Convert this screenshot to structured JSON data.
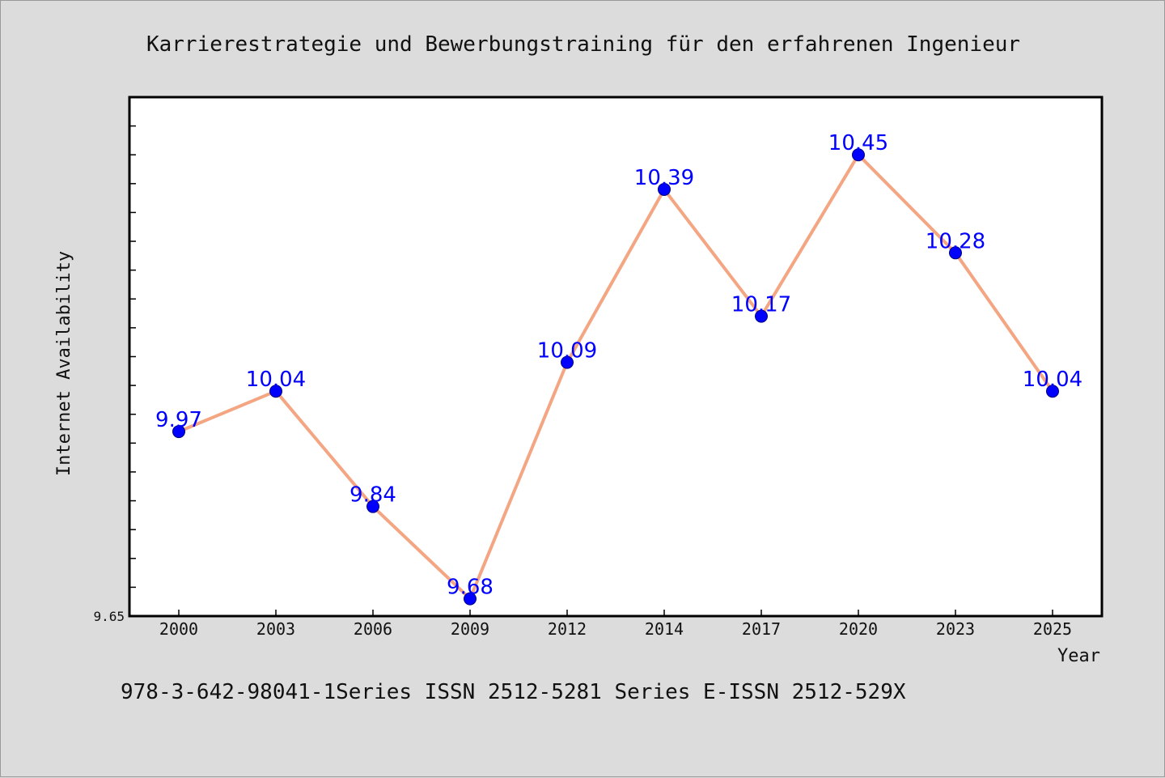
{
  "chart_data": {
    "type": "line",
    "title": "Karrierestrategie und Bewerbungstraining für den erfahrenen Ingenieur",
    "xlabel": "Year",
    "ylabel": "Internet Availability",
    "categories": [
      "2000",
      "2003",
      "2006",
      "2009",
      "2012",
      "2014",
      "2017",
      "2020",
      "2023",
      "2025"
    ],
    "series": [
      {
        "values": [
          9.97,
          10.04,
          9.84,
          9.68,
          10.09,
          10.39,
          10.17,
          10.45,
          10.28,
          10.04
        ]
      }
    ],
    "y_tick_labels": [
      "9.65"
    ],
    "ylim": [
      9.65,
      10.55
    ],
    "line_color": "#f4a582",
    "marker_color": "#0000ff",
    "label_color": "#0000ff",
    "plot_background": "#ffffff",
    "figure_background": "#dcdcdc",
    "grid": false,
    "footer": "978-3-642-98041-1Series ISSN 2512-5281 Series E-ISSN 2512-529X"
  }
}
